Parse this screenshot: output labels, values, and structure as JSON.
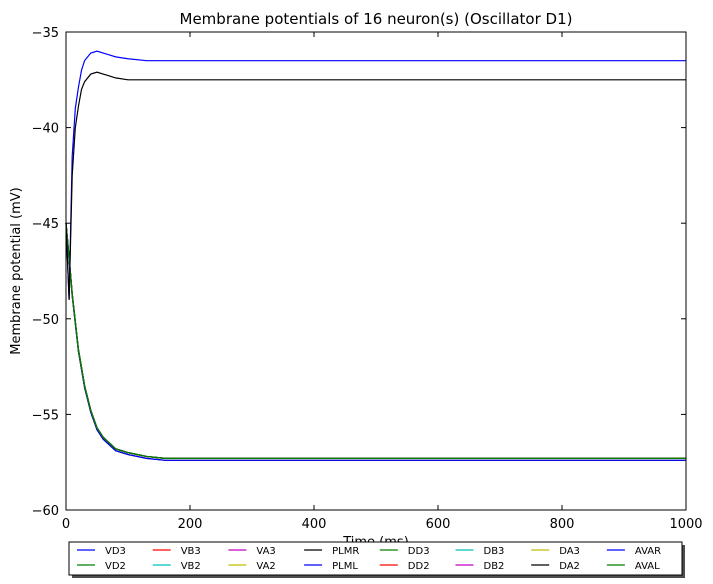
{
  "chart_data": {
    "type": "line",
    "title": "Membrane potentials of 16 neuron(s) (Oscillator D1)",
    "xlabel": "Time (ms)",
    "ylabel": "Membrane potential (mV)",
    "xlim": [
      0,
      1000
    ],
    "ylim": [
      -60,
      -35
    ],
    "xticks": [
      0,
      200,
      400,
      600,
      800,
      1000
    ],
    "yticks": [
      -60,
      -55,
      -50,
      -45,
      -40,
      -35
    ],
    "xtick_labels": [
      "0",
      "200",
      "400",
      "600",
      "800",
      "1000"
    ],
    "ytick_labels": [
      "−60",
      "−55",
      "−50",
      "−45",
      "−40",
      "−35"
    ],
    "grid": false,
    "legend_position": "bottom",
    "series": [
      {
        "name": "VD3",
        "color": "#0000ff",
        "x": [
          0,
          5,
          10,
          20,
          30,
          40,
          50,
          60,
          80,
          100,
          130,
          160,
          200,
          300,
          400,
          600,
          800,
          1000
        ],
        "y": [
          -45.0,
          -46.8,
          -48.7,
          -51.6,
          -53.5,
          -54.8,
          -55.7,
          -56.2,
          -56.8,
          -57.0,
          -57.2,
          -57.3,
          -57.3,
          -57.3,
          -57.3,
          -57.3,
          -57.3,
          -57.3
        ]
      },
      {
        "name": "VD2",
        "color": "#008000",
        "x": [
          0,
          5,
          10,
          20,
          30,
          40,
          50,
          60,
          80,
          100,
          130,
          160,
          200,
          300,
          400,
          600,
          800,
          1000
        ],
        "y": [
          -45.0,
          -46.8,
          -48.7,
          -51.6,
          -53.5,
          -54.8,
          -55.7,
          -56.2,
          -56.8,
          -57.0,
          -57.2,
          -57.3,
          -57.3,
          -57.3,
          -57.3,
          -57.3,
          -57.3,
          -57.3
        ]
      },
      {
        "name": "VB3",
        "color": "#ff0000",
        "x": [
          0,
          5,
          10,
          20,
          30,
          40,
          50,
          60,
          80,
          100,
          130,
          160,
          200,
          300,
          400,
          600,
          800,
          1000
        ],
        "y": [
          -45.0,
          -46.8,
          -48.7,
          -51.6,
          -53.5,
          -54.8,
          -55.7,
          -56.2,
          -56.8,
          -57.0,
          -57.2,
          -57.3,
          -57.3,
          -57.3,
          -57.3,
          -57.3,
          -57.3,
          -57.3
        ]
      },
      {
        "name": "VB2",
        "color": "#00bfbf",
        "x": [
          0,
          5,
          10,
          20,
          30,
          40,
          50,
          60,
          80,
          100,
          130,
          160,
          200,
          300,
          400,
          600,
          800,
          1000
        ],
        "y": [
          -45.0,
          -46.8,
          -48.7,
          -51.6,
          -53.5,
          -54.8,
          -55.7,
          -56.2,
          -56.8,
          -57.0,
          -57.2,
          -57.3,
          -57.3,
          -57.3,
          -57.3,
          -57.3,
          -57.3,
          -57.3
        ]
      },
      {
        "name": "VA3",
        "color": "#bf00bf",
        "x": [
          0,
          5,
          10,
          20,
          30,
          40,
          50,
          60,
          80,
          100,
          130,
          160,
          200,
          300,
          400,
          600,
          800,
          1000
        ],
        "y": [
          -45.0,
          -46.8,
          -48.7,
          -51.6,
          -53.5,
          -54.8,
          -55.7,
          -56.2,
          -56.8,
          -57.0,
          -57.2,
          -57.3,
          -57.3,
          -57.3,
          -57.3,
          -57.3,
          -57.3,
          -57.3
        ]
      },
      {
        "name": "VA2",
        "color": "#bfbf00",
        "x": [
          0,
          5,
          10,
          20,
          30,
          40,
          50,
          60,
          80,
          100,
          130,
          160,
          200,
          300,
          400,
          600,
          800,
          1000
        ],
        "y": [
          -45.0,
          -46.8,
          -48.7,
          -51.6,
          -53.5,
          -54.8,
          -55.7,
          -56.2,
          -56.8,
          -57.0,
          -57.2,
          -57.3,
          -57.3,
          -57.3,
          -57.3,
          -57.3,
          -57.3,
          -57.3
        ]
      },
      {
        "name": "PLMR",
        "color": "#000000",
        "x": [
          0,
          5,
          10,
          20,
          30,
          40,
          50,
          60,
          80,
          100,
          130,
          160,
          200,
          300,
          400,
          600,
          800,
          1000
        ],
        "y": [
          -45.0,
          -46.9,
          -48.8,
          -51.7,
          -53.6,
          -54.9,
          -55.8,
          -56.3,
          -56.9,
          -57.1,
          -57.3,
          -57.4,
          -57.4,
          -57.4,
          -57.4,
          -57.4,
          -57.4,
          -57.4
        ]
      },
      {
        "name": "PLML",
        "color": "#0000ff",
        "x": [
          0,
          5,
          10,
          20,
          30,
          40,
          50,
          60,
          80,
          100,
          130,
          160,
          200,
          300,
          400,
          600,
          800,
          1000
        ],
        "y": [
          -45.0,
          -46.9,
          -48.8,
          -51.7,
          -53.6,
          -54.9,
          -55.8,
          -56.3,
          -56.9,
          -57.1,
          -57.3,
          -57.4,
          -57.4,
          -57.4,
          -57.4,
          -57.4,
          -57.4,
          -57.4
        ]
      },
      {
        "name": "DD3",
        "color": "#008000",
        "x": [
          0,
          5,
          10,
          20,
          30,
          40,
          50,
          60,
          80,
          100,
          130,
          160,
          200,
          300,
          400,
          600,
          800,
          1000
        ],
        "y": [
          -45.0,
          -46.8,
          -48.7,
          -51.6,
          -53.5,
          -54.8,
          -55.7,
          -56.2,
          -56.8,
          -57.0,
          -57.2,
          -57.3,
          -57.3,
          -57.3,
          -57.3,
          -57.3,
          -57.3,
          -57.3
        ]
      },
      {
        "name": "DD2",
        "color": "#ff0000",
        "x": [
          0,
          5,
          10,
          20,
          30,
          40,
          50,
          60,
          80,
          100,
          130,
          160,
          200,
          300,
          400,
          600,
          800,
          1000
        ],
        "y": [
          -45.0,
          -46.8,
          -48.7,
          -51.6,
          -53.5,
          -54.8,
          -55.7,
          -56.2,
          -56.8,
          -57.0,
          -57.2,
          -57.3,
          -57.3,
          -57.3,
          -57.3,
          -57.3,
          -57.3,
          -57.3
        ]
      },
      {
        "name": "DB3",
        "color": "#00bfbf",
        "x": [
          0,
          5,
          10,
          20,
          30,
          40,
          50,
          60,
          80,
          100,
          130,
          160,
          200,
          300,
          400,
          600,
          800,
          1000
        ],
        "y": [
          -45.0,
          -46.8,
          -48.7,
          -51.6,
          -53.5,
          -54.8,
          -55.7,
          -56.2,
          -56.8,
          -57.0,
          -57.2,
          -57.3,
          -57.3,
          -57.3,
          -57.3,
          -57.3,
          -57.3,
          -57.3
        ]
      },
      {
        "name": "DB2",
        "color": "#bf00bf",
        "x": [
          0,
          5,
          10,
          20,
          30,
          40,
          50,
          60,
          80,
          100,
          130,
          160,
          200,
          300,
          400,
          600,
          800,
          1000
        ],
        "y": [
          -45.0,
          -46.8,
          -48.7,
          -51.6,
          -53.5,
          -54.8,
          -55.7,
          -56.2,
          -56.8,
          -57.0,
          -57.2,
          -57.3,
          -57.3,
          -57.3,
          -57.3,
          -57.3,
          -57.3,
          -57.3
        ]
      },
      {
        "name": "DA3",
        "color": "#bfbf00",
        "x": [
          0,
          5,
          10,
          20,
          30,
          40,
          50,
          60,
          80,
          100,
          130,
          160,
          200,
          300,
          400,
          600,
          800,
          1000
        ],
        "y": [
          -45.0,
          -46.8,
          -48.7,
          -51.6,
          -53.5,
          -54.8,
          -55.7,
          -56.2,
          -56.8,
          -57.0,
          -57.2,
          -57.3,
          -57.3,
          -57.3,
          -57.3,
          -57.3,
          -57.3,
          -57.3
        ]
      },
      {
        "name": "DA2",
        "color": "#000000",
        "x": [
          0,
          5,
          10,
          20,
          30,
          40,
          50,
          60,
          80,
          100,
          130,
          160,
          200,
          300,
          400,
          600,
          800,
          1000
        ],
        "y": [
          -45.0,
          -46.8,
          -48.7,
          -51.6,
          -53.5,
          -54.8,
          -55.7,
          -56.2,
          -56.8,
          -57.0,
          -57.2,
          -57.3,
          -57.3,
          -57.3,
          -57.3,
          -57.3,
          -57.3,
          -57.3
        ]
      },
      {
        "name": "AVAR",
        "color": "#0000ff",
        "x": [
          0,
          5,
          10,
          15,
          20,
          25,
          30,
          40,
          50,
          60,
          70,
          80,
          100,
          130,
          160,
          200,
          300,
          500,
          1000
        ],
        "y": [
          -45.0,
          -49.0,
          -41.5,
          -39.0,
          -37.9,
          -37.0,
          -36.5,
          -36.1,
          -36.0,
          -36.1,
          -36.2,
          -36.3,
          -36.4,
          -36.5,
          -36.5,
          -36.5,
          -36.5,
          -36.5,
          -36.5
        ]
      },
      {
        "name": "AVAL",
        "color": "#008000",
        "x": [
          0,
          5,
          10,
          20,
          30,
          40,
          50,
          60,
          80,
          100,
          130,
          160,
          200,
          300,
          400,
          600,
          800,
          1000
        ],
        "y": [
          -45.0,
          -46.8,
          -48.7,
          -51.6,
          -53.5,
          -54.8,
          -55.7,
          -56.2,
          -56.8,
          -57.0,
          -57.2,
          -57.3,
          -57.3,
          -57.3,
          -57.3,
          -57.3,
          -57.3,
          -57.3
        ]
      },
      {
        "name": "",
        "color": "#000000",
        "x": [
          0,
          5,
          10,
          15,
          20,
          25,
          30,
          40,
          50,
          60,
          70,
          80,
          100,
          130,
          160,
          200,
          300,
          500,
          1000
        ],
        "y": [
          -45.0,
          -49.0,
          -42.5,
          -40.0,
          -38.9,
          -38.0,
          -37.6,
          -37.2,
          -37.1,
          -37.2,
          -37.3,
          -37.4,
          -37.5,
          -37.5,
          -37.5,
          -37.5,
          -37.5,
          -37.5,
          -37.5
        ]
      }
    ]
  }
}
